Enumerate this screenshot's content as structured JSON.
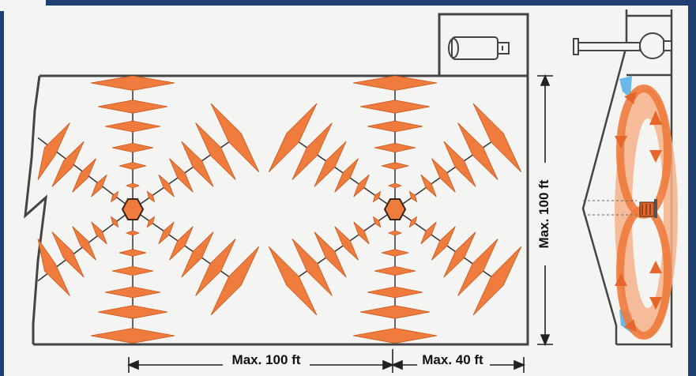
{
  "dimensions": {
    "spacing_label": "Max. 100 ft",
    "wall_label": "Max. 40 ft",
    "depth_label": "Max. 100 ft"
  },
  "colors": {
    "frame": "#1f3f73",
    "paper": "#f4f4f2",
    "airflow_orange": "#ef7b3c",
    "airflow_light": "#f6b08a",
    "cool_blue": "#6ab9e6",
    "wall_line": "#444444"
  },
  "diagram": {
    "units": [
      "circulation-unit-left",
      "circulation-unit-right"
    ],
    "side_view": "building-cross-section-airflow"
  }
}
